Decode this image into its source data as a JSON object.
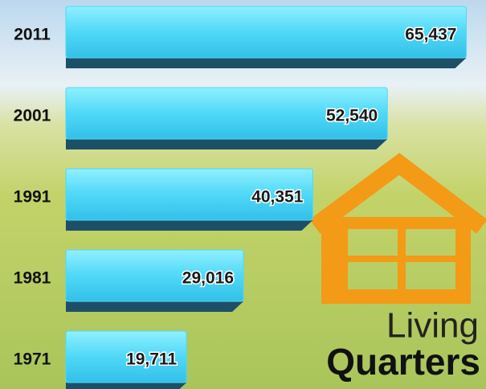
{
  "chart_data": {
    "type": "bar",
    "orientation": "horizontal",
    "title_lines": [
      "Living",
      "Quarters"
    ],
    "categories": [
      "2011",
      "2001",
      "1991",
      "1981",
      "1971"
    ],
    "values": [
      65437,
      52540,
      40351,
      29016,
      19711
    ],
    "value_labels": [
      "65,437",
      "52,540",
      "40,351",
      "29,016",
      "19,711"
    ],
    "color": "#4fd8f7",
    "xlim": [
      0,
      68000
    ]
  }
}
